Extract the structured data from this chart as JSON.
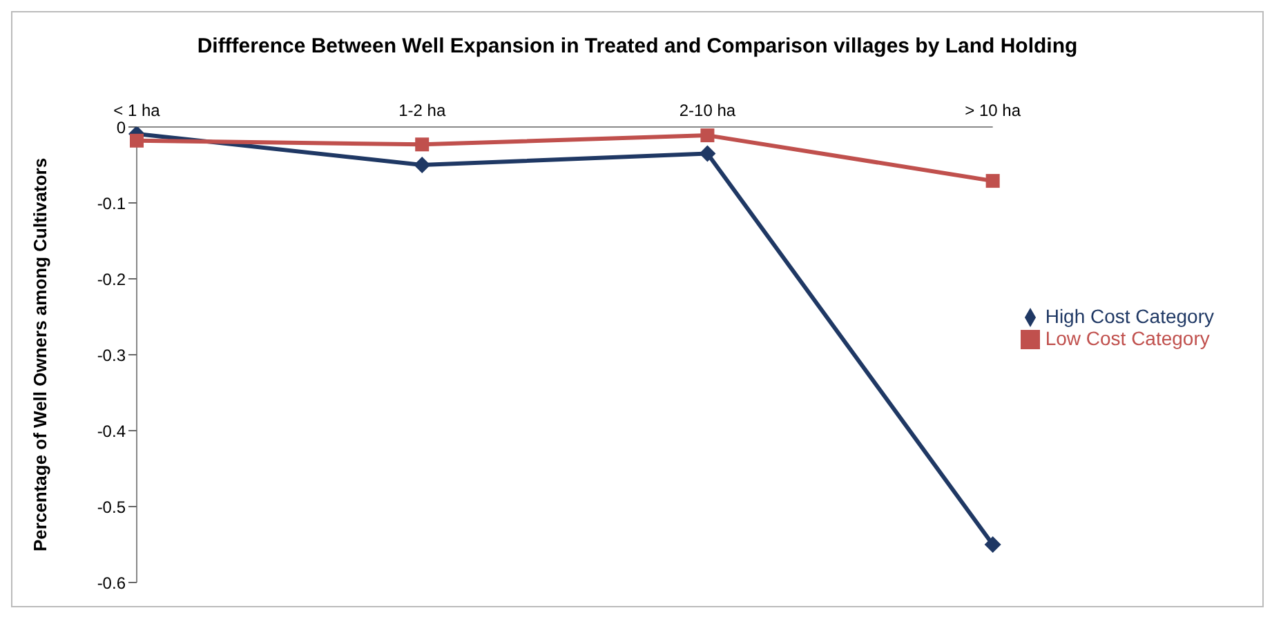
{
  "chart_data": {
    "type": "line",
    "title": "Diffference Between  Well Expansion in Treated and Comparison villages by Land Holding",
    "ylabel": "Percentage of Well Owners among Cultivators",
    "categories": [
      "< 1 ha",
      "1-2 ha",
      "2-10 ha",
      "> 10 ha"
    ],
    "series": [
      {
        "name": "High Cost Category",
        "color": "#1f3864",
        "marker": "diamond",
        "values": [
          -0.009,
          -0.05,
          -0.035,
          -0.55
        ]
      },
      {
        "name": "Low Cost Category",
        "color": "#c0504d",
        "marker": "square",
        "values": [
          -0.018,
          -0.023,
          -0.011,
          -0.071
        ]
      }
    ],
    "ylim": [
      -0.6,
      0
    ],
    "yticks": [
      {
        "value": -0.6,
        "label": "-0.6"
      },
      {
        "value": -0.5,
        "label": "-0.5"
      },
      {
        "value": -0.4,
        "label": "-0.4"
      },
      {
        "value": -0.3,
        "label": "-0.3"
      },
      {
        "value": -0.2,
        "label": "-0.2"
      },
      {
        "value": -0.1,
        "label": "-0.1"
      },
      {
        "value": 0,
        "label": "0"
      }
    ],
    "grid": false,
    "legend": "right"
  }
}
